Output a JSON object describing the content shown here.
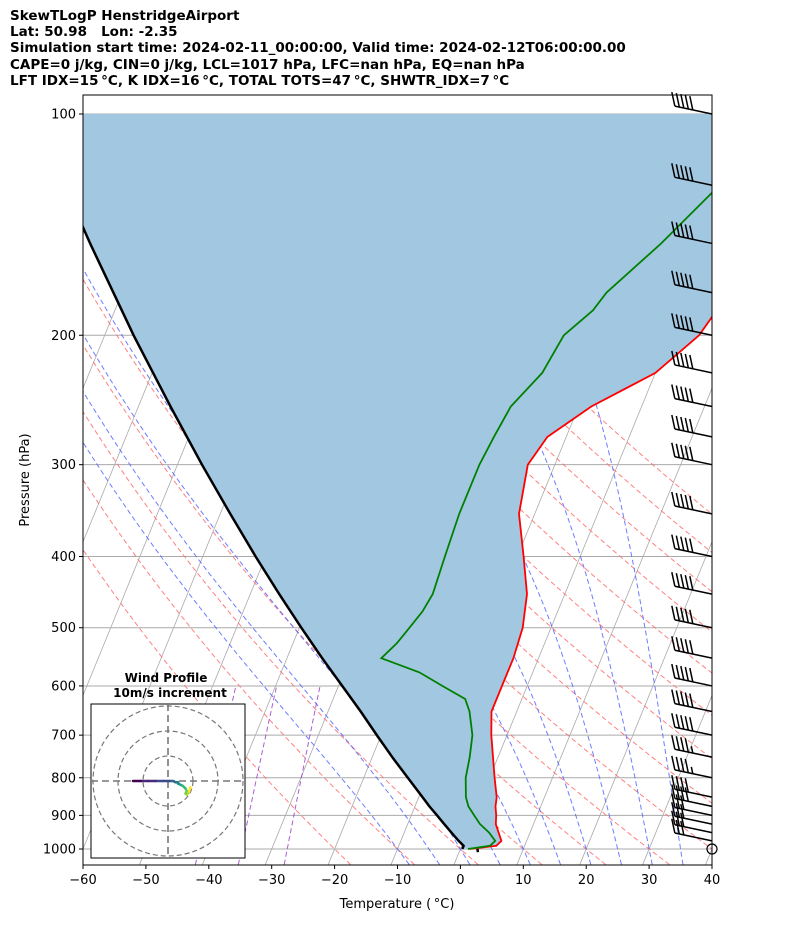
{
  "header": {
    "line1": "SkewTLogP HenstridgeAirport",
    "line2": "Lat: 50.98   Lon: -2.35",
    "line3": "Simulation start time: 2024-02-11_00:00:00, Valid time: 2024-02-12T06:00:00.00",
    "line4": "CAPE=0 j/kg, CIN=0 j/kg, LCL=1017 hPa, LFC=nan hPa, EQ=nan hPa",
    "line5": "LFT IDX=15 °C, K IDX=16 °C, TOTAL TOTS=47 °C, SHWTR_IDX=7 °C"
  },
  "chart_data": {
    "type": "line",
    "xlabel": "Temperature ( °C)",
    "ylabel": "Pressure (hPa)",
    "xlim": [
      -60,
      40
    ],
    "ylim": [
      1050,
      100
    ],
    "y_scale": "log",
    "grid": true,
    "x_ticks": [
      -60,
      -50,
      -40,
      -30,
      -20,
      -10,
      0,
      10,
      20,
      30,
      40
    ],
    "x_tick_labels": [
      "−60",
      "−50",
      "−40",
      "−30",
      "−20",
      "−10",
      "0",
      "10",
      "20",
      "30",
      "40"
    ],
    "y_ticks": [
      1000,
      900,
      800,
      700,
      600,
      500,
      400,
      300,
      200,
      100
    ],
    "colors": {
      "temperature": "#ff0000",
      "dewpoint": "#008000",
      "parcel": "#000000",
      "cape_fill": "#a2c7e0",
      "dry_adiabat": "#ff6b6b",
      "moist_adiabat": "#4a5cff",
      "mixing_ratio": "#9933cc",
      "isotherm": "#aaaaaa"
    },
    "series": [
      {
        "key": "temperature",
        "pressure": [
          1000,
          990,
          975,
          950,
          925,
          900,
          875,
          850,
          800,
          750,
          700,
          650,
          600,
          550,
          500,
          450,
          400,
          350,
          300,
          275,
          250,
          225,
          200,
          175,
          150,
          125,
          110,
          100
        ],
        "values": [
          1.5,
          5.5,
          6.0,
          5.0,
          4.0,
          3.5,
          2.8,
          2.4,
          0.8,
          -0.8,
          -2.5,
          -4.0,
          -4.0,
          -4.0,
          -4.5,
          -6.0,
          -9.0,
          -12.5,
          -14.3,
          -13.0,
          -8.0,
          0.0,
          4.5,
          6.5,
          8.0,
          9.5,
          12.0,
          15.0
        ]
      },
      {
        "key": "dewpoint",
        "pressure": [
          1000,
          990,
          975,
          950,
          925,
          900,
          875,
          850,
          800,
          750,
          700,
          650,
          625,
          600,
          575,
          550,
          525,
          500,
          475,
          450,
          400,
          350,
          300,
          275,
          250,
          225,
          200,
          185,
          175,
          150,
          125,
          100
        ],
        "values": [
          1.2,
          4.5,
          5.0,
          3.5,
          1.5,
          0.0,
          -1.5,
          -2.5,
          -3.8,
          -4.5,
          -5.5,
          -7.5,
          -9.0,
          -13.5,
          -18.0,
          -25.0,
          -23.5,
          -22.5,
          -21.5,
          -21.0,
          -21.5,
          -22.0,
          -22.0,
          -21.5,
          -20.8,
          -18.0,
          -17.0,
          -14.0,
          -13.0,
          -7.5,
          -2.0,
          3.5
        ]
      },
      {
        "key": "parcel",
        "pressure": [
          1000,
          990,
          975,
          950,
          925,
          900,
          875,
          850,
          800,
          750,
          700,
          650,
          600,
          550,
          500,
          450,
          400,
          350,
          300,
          250,
          200,
          150,
          100
        ],
        "values": [
          0.3,
          0.3,
          -0.8,
          -2.5,
          -4.2,
          -5.9,
          -7.7,
          -9.4,
          -13.0,
          -16.8,
          -20.7,
          -24.8,
          -29.4,
          -34.4,
          -39.7,
          -45.4,
          -51.6,
          -58.4,
          -66.1,
          -74.9,
          -85.4,
          -98.3,
          -115.8
        ]
      }
    ],
    "wind_barbs": {
      "pressure": [
        1000,
        975,
        950,
        925,
        900,
        875,
        850,
        800,
        750,
        700,
        650,
        600,
        550,
        500,
        450,
        400,
        350,
        300,
        275,
        250,
        225,
        200,
        175,
        150,
        125,
        100
      ],
      "speed_kt": [
        0,
        30,
        30,
        30,
        30,
        40,
        40,
        45,
        45,
        50,
        50,
        50,
        50,
        50,
        50,
        50,
        50,
        50,
        50,
        50,
        50,
        50,
        50,
        50,
        50,
        50
      ],
      "direction_deg": [
        0,
        280,
        275,
        275,
        280,
        280,
        280,
        275,
        270,
        270,
        260,
        255,
        250,
        250,
        250,
        250,
        255,
        255,
        255,
        255,
        255,
        255,
        255,
        255,
        255,
        255
      ]
    },
    "inset": {
      "title": "Wind Profile",
      "subtitle": "10m/s increment",
      "hodograph_u": [
        9.0,
        8.5,
        8.0,
        7.5,
        7.0,
        7.5,
        7.0,
        6.0,
        5.0,
        4.0,
        4.0,
        3.0,
        2.0,
        0.5,
        -2.0,
        -5.0,
        -8.0,
        -11.0,
        -14.0
      ],
      "hodograph_v": [
        -2.5,
        -4.0,
        -5.0,
        -5.5,
        -5.0,
        -4.0,
        -3.0,
        -2.0,
        -1.5,
        -1.0,
        -0.5,
        -0.5,
        0.0,
        0.0,
        0.0,
        0.0,
        0.0,
        0.0,
        0.0
      ]
    }
  }
}
